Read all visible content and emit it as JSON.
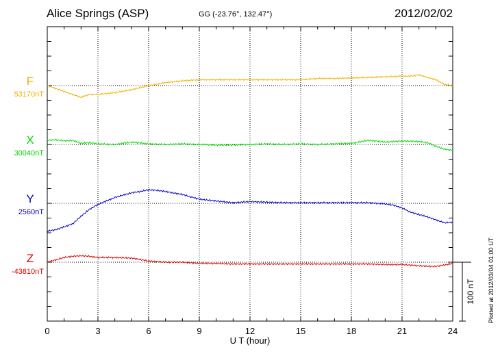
{
  "header": {
    "station": "Alice Springs (ASP)",
    "coords": "GG (-23.76°, 132.47°)",
    "date": "2012/02/02",
    "plotted": "Plotted at 2012/03/04 01:00 UT"
  },
  "colors": {
    "F": "#f0b000",
    "X": "#00d800",
    "Y": "#0000cc",
    "Z": "#dd0000"
  },
  "chart_data": {
    "type": "line",
    "xlabel": "U T (hour)",
    "xlim": [
      0,
      24
    ],
    "xticks": [
      "0",
      "3",
      "6",
      "9",
      "12",
      "15",
      "18",
      "21",
      "24"
    ],
    "scale_bar": "100 nT",
    "series": [
      {
        "name": "F",
        "baseline_label": "53170nT",
        "x": [
          0,
          0.5,
          1,
          1.5,
          2,
          2.5,
          3,
          4,
          5,
          6,
          7,
          8,
          9,
          10,
          11,
          12,
          13,
          14,
          15,
          16,
          17,
          18,
          19,
          20,
          21,
          21.5,
          22,
          22.5,
          23,
          23.5,
          24
        ],
        "y": [
          53170,
          53165,
          53160,
          53155,
          53150,
          53155,
          53155,
          53158,
          53163,
          53170,
          53175,
          53178,
          53180,
          53180,
          53180,
          53180,
          53180,
          53180,
          53180,
          53182,
          53182,
          53183,
          53184,
          53185,
          53186,
          53186,
          53188,
          53184,
          53180,
          53172,
          53170
        ]
      },
      {
        "name": "X",
        "baseline_label": "30040nT",
        "x": [
          0,
          0.5,
          1,
          1.5,
          2,
          2.5,
          3,
          4,
          5,
          6,
          7,
          8,
          9,
          10,
          11,
          12,
          13,
          14,
          15,
          16,
          17,
          18,
          19,
          20,
          21,
          22,
          22.5,
          23,
          23.5,
          24
        ],
        "y": [
          30047,
          30048,
          30046,
          30047,
          30042,
          30043,
          30041,
          30040,
          30044,
          30041,
          30040,
          30041,
          30040,
          30039,
          30039,
          30040,
          30041,
          30040,
          30041,
          30040,
          30041,
          30042,
          30047,
          30044,
          30046,
          30045,
          30043,
          30037,
          30032,
          30030
        ]
      },
      {
        "name": "Y",
        "baseline_label": "2560nT",
        "x": [
          0,
          0.5,
          1,
          1.5,
          2,
          2.5,
          3,
          4,
          5,
          5.5,
          6,
          6.5,
          7,
          8,
          9,
          10,
          11,
          12,
          13,
          14,
          15,
          16,
          17,
          18,
          19,
          20,
          20.5,
          21,
          21.5,
          22,
          22.5,
          23,
          23.5,
          24
        ],
        "y": [
          2513,
          2515,
          2520,
          2525,
          2538,
          2550,
          2558,
          2570,
          2578,
          2580,
          2583,
          2582,
          2580,
          2575,
          2567,
          2564,
          2561,
          2563,
          2562,
          2561,
          2561,
          2561,
          2561,
          2561,
          2561,
          2559,
          2557,
          2552,
          2545,
          2541,
          2537,
          2532,
          2527,
          2528
        ]
      },
      {
        "name": "Z",
        "baseline_label": "-43810nT",
        "x": [
          0,
          0.5,
          1,
          1.5,
          2,
          2.5,
          3,
          4,
          5,
          6,
          7,
          8,
          9,
          10,
          11,
          12,
          13,
          14,
          15,
          16,
          17,
          18,
          19,
          20,
          21,
          22,
          22.5,
          23,
          23.5,
          24
        ],
        "y": [
          -43810,
          -43806,
          -43802,
          -43800,
          -43799,
          -43800,
          -43802,
          -43802,
          -43803,
          -43808,
          -43810,
          -43810,
          -43812,
          -43812,
          -43813,
          -43813,
          -43813,
          -43813,
          -43813,
          -43813,
          -43813,
          -43813,
          -43813,
          -43814,
          -43814,
          -43816,
          -43817,
          -43817,
          -43815,
          -43812
        ]
      }
    ]
  }
}
